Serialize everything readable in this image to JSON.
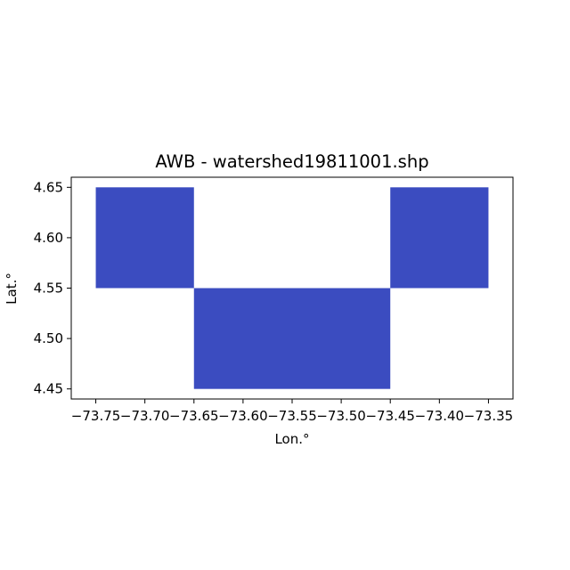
{
  "chart_data": {
    "type": "map",
    "title": "AWB - watershed19811001.shp",
    "xlabel": "Lon.°",
    "ylabel": "Lat.°",
    "xlim": [
      -73.775,
      -73.325
    ],
    "ylim": [
      4.44,
      4.66
    ],
    "x_ticks": [
      -73.75,
      -73.7,
      -73.65,
      -73.6,
      -73.55,
      -73.5,
      -73.45,
      -73.4,
      -73.35
    ],
    "x_tick_labels": [
      "−73.75",
      "−73.70",
      "−73.65",
      "−73.60",
      "−73.55",
      "−73.50",
      "−73.45",
      "−73.40",
      "−73.35"
    ],
    "y_ticks": [
      4.45,
      4.5,
      4.55,
      4.6,
      4.65
    ],
    "y_tick_labels": [
      "4.45",
      "4.50",
      "4.55",
      "4.60",
      "4.65"
    ],
    "grid": false,
    "fill_color": "#3b4cc0",
    "polygons": [
      {
        "lon": [
          -73.75,
          -73.65
        ],
        "lat": [
          4.55,
          4.65
        ]
      },
      {
        "lon": [
          -73.65,
          -73.45
        ],
        "lat": [
          4.45,
          4.55
        ]
      },
      {
        "lon": [
          -73.45,
          -73.35
        ],
        "lat": [
          4.55,
          4.65
        ]
      }
    ]
  }
}
